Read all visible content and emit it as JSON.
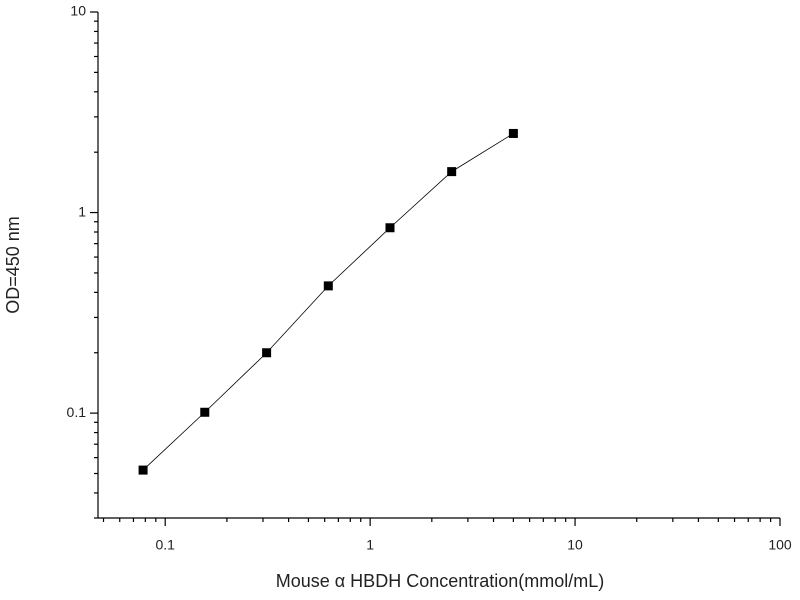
{
  "chart_data": {
    "type": "scatter",
    "x_label": "Mouse α HBDH Concentration(mmol/mL)",
    "y_label": "OD=450 nm",
    "x_scale": "log",
    "y_scale": "log",
    "line": true,
    "xlim": [
      0.047,
      100
    ],
    "xticks": [
      0.1,
      1,
      10,
      100
    ],
    "ylim": [
      0.03,
      10
    ],
    "yticks": [
      0.1,
      1,
      10
    ],
    "series": [
      {
        "color": "#000000",
        "x": [
          0.078,
          0.156,
          0.3125,
          0.625,
          1.25,
          2.5,
          5
        ],
        "values": [
          0.052,
          0.101,
          0.2,
          0.431,
          0.84,
          1.6,
          2.48
        ]
      }
    ]
  }
}
